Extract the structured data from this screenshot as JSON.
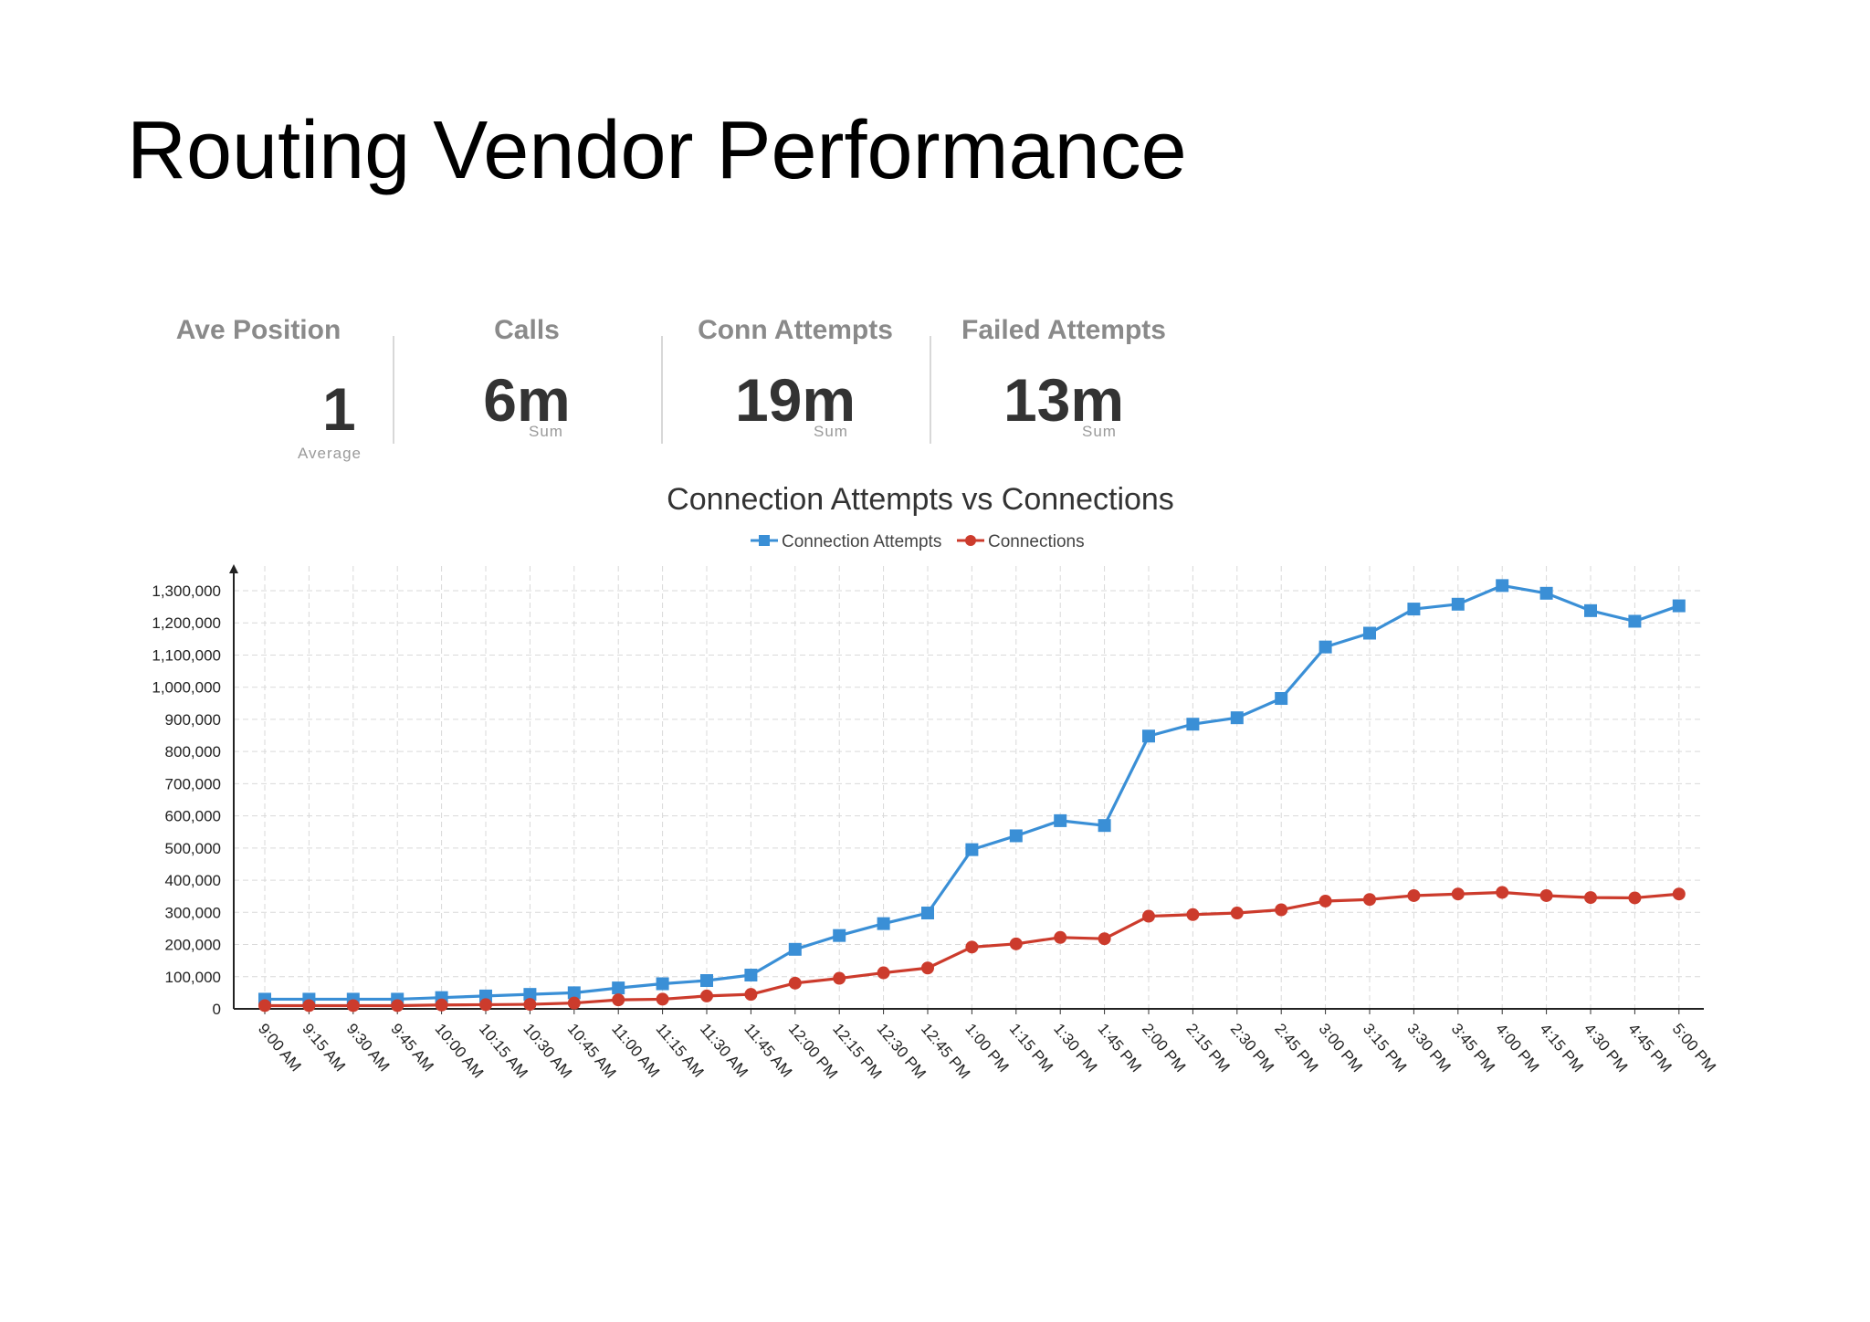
{
  "title": "Routing Vendor Performance",
  "kpis": [
    {
      "label": "Ave Position",
      "value": "1",
      "sub": "Average"
    },
    {
      "label": "Calls",
      "value": "6m",
      "sub": "Sum"
    },
    {
      "label": "Conn Attempts",
      "value": "19m",
      "sub": "Sum"
    },
    {
      "label": "Failed Attempts",
      "value": "13m",
      "sub": "Sum"
    }
  ],
  "colors": {
    "attempts": "#3a8fd6",
    "connections": "#cc3b2c",
    "grid": "#d9d9d9"
  },
  "chart_data": {
    "type": "line",
    "title": "Connection Attempts vs Connections",
    "xlabel": "",
    "ylabel": "",
    "ylim": [
      0,
      1300000
    ],
    "yticks": [
      0,
      100000,
      200000,
      300000,
      400000,
      500000,
      600000,
      700000,
      800000,
      900000,
      1000000,
      1100000,
      1200000,
      1300000
    ],
    "ytick_labels": [
      "0",
      "100,000",
      "200,000",
      "300,000",
      "400,000",
      "500,000",
      "600,000",
      "700,000",
      "800,000",
      "900,000",
      "1,000,000",
      "1,100,000",
      "1,200,000",
      "1,300,000"
    ],
    "categories": [
      "9:00 AM",
      "9:15 AM",
      "9:30 AM",
      "9:45 AM",
      "10:00 AM",
      "10:15 AM",
      "10:30 AM",
      "10:45 AM",
      "11:00 AM",
      "11:15 AM",
      "11:30 AM",
      "11:45 AM",
      "12:00 PM",
      "12:15 PM",
      "12:30 PM",
      "12:45 PM",
      "1:00 PM",
      "1:15 PM",
      "1:30 PM",
      "1:45 PM",
      "2:00 PM",
      "2:15 PM",
      "2:30 PM",
      "2:45 PM",
      "3:00 PM",
      "3:15 PM",
      "3:30 PM",
      "3:45 PM",
      "4:00 PM",
      "4:15 PM",
      "4:30 PM",
      "4:45 PM",
      "5:00 PM"
    ],
    "legend_position": "top-center",
    "grid": true,
    "series": [
      {
        "name": "Connection Attempts",
        "marker": "square",
        "values": [
          30000,
          30000,
          30000,
          30000,
          35000,
          40000,
          45000,
          50000,
          65000,
          78000,
          88000,
          105000,
          185000,
          228000,
          265000,
          298000,
          495000,
          538000,
          585000,
          570000,
          848000,
          885000,
          905000,
          965000,
          1125000,
          1168000,
          1243000,
          1258000,
          1316000,
          1292000,
          1238000,
          1205000,
          1253000
        ]
      },
      {
        "name": "Connections",
        "marker": "circle",
        "values": [
          10000,
          10000,
          10000,
          10000,
          12000,
          13000,
          14000,
          18000,
          28000,
          30000,
          40000,
          45000,
          80000,
          95000,
          112000,
          127000,
          192000,
          202000,
          222000,
          218000,
          288000,
          293000,
          298000,
          308000,
          335000,
          340000,
          352000,
          357000,
          362000,
          352000,
          346000,
          345000,
          357000
        ]
      }
    ]
  }
}
